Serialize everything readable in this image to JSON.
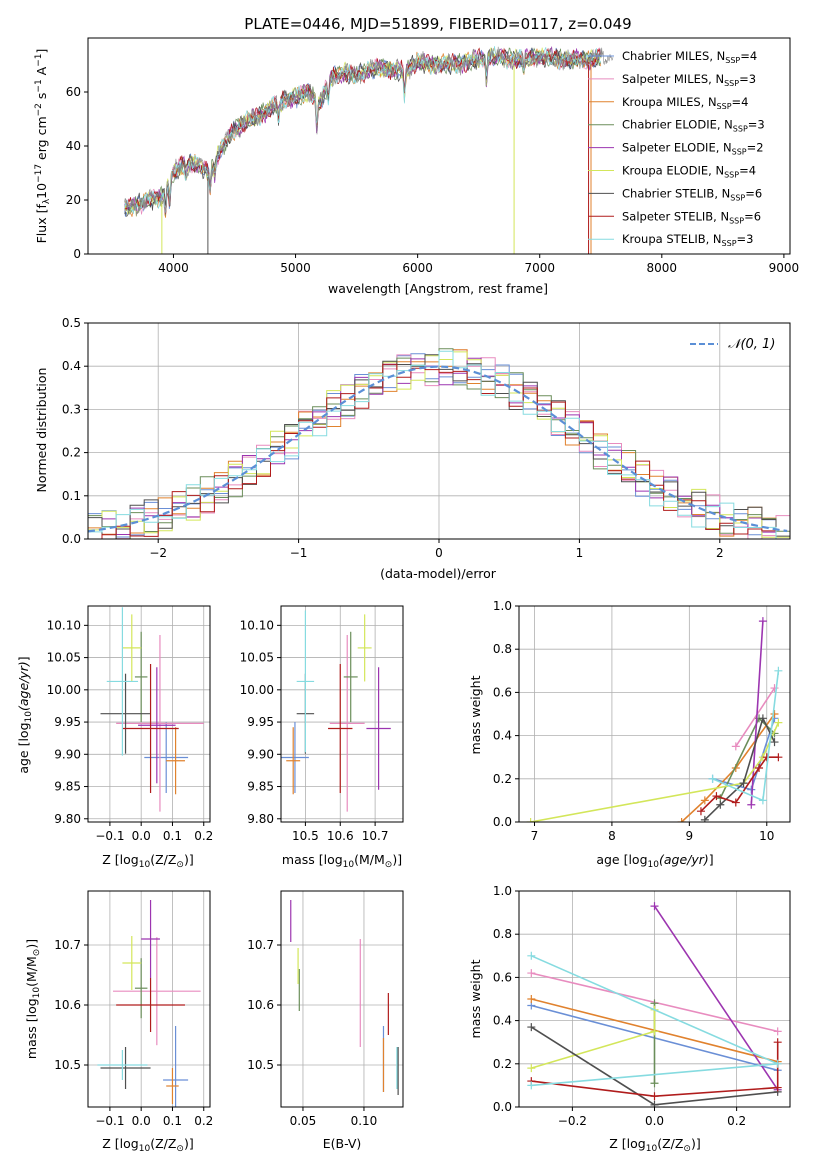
{
  "colors": {
    "chabrier_miles": "#6a8fd6",
    "salpeter_miles": "#e88cbf",
    "kroupa_miles": "#e0822e",
    "chabrier_elodie": "#6b8e5a",
    "salpeter_elodie": "#9c35b0",
    "kroupa_elodie": "#d3e65a",
    "chabrier_stelib": "#4f4f4f",
    "salpeter_stelib": "#b01c1c",
    "kroupa_stelib": "#86dbe0",
    "normal": "#5b8fd6"
  },
  "chart_data": [
    {
      "id": "spectrum",
      "type": "line",
      "title": "PLATE=0446, MJD=51899, FIBERID=0117, z=0.049",
      "xlabel": "wavelength [Angstrom, rest frame]",
      "ylabel": "Flux [f_λ 10^-17 erg cm^-2 s^-1 A^-1]",
      "xlim": [
        3300,
        9050
      ],
      "ylim": [
        0,
        80
      ],
      "xticks": [
        4000,
        5000,
        6000,
        7000,
        8000,
        9000
      ],
      "yticks": [
        0,
        20,
        40,
        60
      ],
      "continuum": {
        "x": [
          3600,
          3700,
          3800,
          3900,
          4000,
          4100,
          4200,
          4300,
          4400,
          4500,
          4600,
          4700,
          4800,
          4900,
          5000,
          5100,
          5200,
          5300,
          5400,
          5500,
          5600,
          5700,
          5800,
          5900,
          6000,
          6200,
          6400,
          6600,
          6800,
          7000,
          7200,
          7400,
          7500
        ],
        "y": [
          17,
          18,
          20,
          21,
          30,
          34,
          33,
          30,
          40,
          46,
          49,
          51,
          54,
          57,
          58,
          60,
          56,
          66,
          67,
          66,
          68,
          69,
          68,
          68,
          71,
          70,
          71,
          73,
          72,
          73,
          72,
          72,
          73
        ]
      },
      "legend": [
        {
          "name": "Chabrier MILES, N",
          "sub": "SSP",
          "n": "=4"
        },
        {
          "name": "Salpeter MILES, N",
          "sub": "SSP",
          "n": "=3"
        },
        {
          "name": "Kroupa MILES, N",
          "sub": "SSP",
          "n": "=4"
        },
        {
          "name": "Chabrier ELODIE, N",
          "sub": "SSP",
          "n": "=3"
        },
        {
          "name": "Salpeter ELODIE, N",
          "sub": "SSP",
          "n": "=2"
        },
        {
          "name": "Kroupa ELODIE, N",
          "sub": "SSP",
          "n": "=4"
        },
        {
          "name": "Chabrier STELIB, N",
          "sub": "SSP",
          "n": "=6"
        },
        {
          "name": "Salpeter STELIB, N",
          "sub": "SSP",
          "n": "=6"
        },
        {
          "name": "Kroupa STELIB, N",
          "sub": "SSP",
          "n": "=3"
        }
      ],
      "legend_position": "right"
    },
    {
      "id": "residuals",
      "type": "line",
      "xlabel": "(data-model)/error",
      "ylabel": "Normed distribution",
      "xlim": [
        -2.5,
        2.5
      ],
      "ylim": [
        0,
        0.5
      ],
      "xticks": [
        -2,
        -1,
        0,
        1,
        2
      ],
      "yticks": [
        0.0,
        0.1,
        0.2,
        0.3,
        0.4,
        0.5
      ],
      "grid": true,
      "legend": [
        "𝒩(0, 1)"
      ],
      "legend_position": "top-right"
    },
    {
      "id": "age_vs_Z",
      "type": "scatter",
      "xlabel": "Z [log10(Z/Z⊙)]",
      "ylabel": "age [log10(age/yr)]",
      "xlim": [
        -0.17,
        0.22
      ],
      "ylim": [
        9.795,
        10.13
      ],
      "xticks": [
        -0.1,
        0.0,
        0.1,
        0.2
      ],
      "yticks": [
        9.8,
        9.85,
        9.9,
        9.95,
        10.0,
        10.05,
        10.1
      ],
      "points": [
        {
          "s": "chabrier_miles",
          "x": 0.08,
          "y": 9.895,
          "xerr": 0.07,
          "yerr": 0.055
        },
        {
          "s": "salpeter_miles",
          "x": 0.06,
          "y": 9.948,
          "xerr": 0.14,
          "yerr": 0.137
        },
        {
          "s": "kroupa_miles",
          "x": 0.11,
          "y": 9.89,
          "xerr": 0.03,
          "yerr": 0.052
        },
        {
          "s": "chabrier_elodie",
          "x": 0.0,
          "y": 10.02,
          "xerr": 0.02,
          "yerr": 0.07
        },
        {
          "s": "salpeter_elodie",
          "x": 0.05,
          "y": 9.945,
          "xerr": 0.06,
          "yerr": 0.09
        },
        {
          "s": "kroupa_elodie",
          "x": -0.03,
          "y": 10.065,
          "xerr": 0.03,
          "yerr": 0.052
        },
        {
          "s": "chabrier_stelib",
          "x": -0.05,
          "y": 9.963,
          "xerr": 0.08,
          "yerr": 0.062
        },
        {
          "s": "salpeter_stelib",
          "x": 0.03,
          "y": 9.94,
          "xerr": 0.09,
          "yerr": 0.1
        },
        {
          "s": "kroupa_stelib",
          "x": -0.06,
          "y": 10.013,
          "xerr": 0.05,
          "yerr": 0.115
        }
      ]
    },
    {
      "id": "age_vs_mass",
      "type": "scatter",
      "xlabel": "mass [log10(M/M⊙)]",
      "xlim": [
        10.43,
        10.78
      ],
      "ylim": [
        9.795,
        10.13
      ],
      "xticks": [
        10.5,
        10.6,
        10.7
      ],
      "yticks": [
        9.8,
        9.85,
        9.9,
        9.95,
        10.0,
        10.05,
        10.1
      ],
      "points": [
        {
          "s": "chabrier_miles",
          "x": 10.47,
          "y": 9.895,
          "xerr": 0.04,
          "yerr": 0.055
        },
        {
          "s": "salpeter_miles",
          "x": 10.62,
          "y": 9.948,
          "xerr": 0.05,
          "yerr": 0.137
        },
        {
          "s": "kroupa_miles",
          "x": 10.465,
          "y": 9.89,
          "xerr": 0.02,
          "yerr": 0.052
        },
        {
          "s": "chabrier_elodie",
          "x": 10.63,
          "y": 10.02,
          "xerr": 0.02,
          "yerr": 0.07
        },
        {
          "s": "salpeter_elodie",
          "x": 10.71,
          "y": 9.94,
          "xerr": 0.035,
          "yerr": 0.095
        },
        {
          "s": "kroupa_elodie",
          "x": 10.67,
          "y": 10.065,
          "xerr": 0.02,
          "yerr": 0.052
        },
        {
          "s": "chabrier_stelib",
          "x": 10.5,
          "y": 9.963,
          "xerr": 0.025,
          "yerr": 0.062
        },
        {
          "s": "salpeter_stelib",
          "x": 10.6,
          "y": 9.94,
          "xerr": 0.035,
          "yerr": 0.1
        },
        {
          "s": "kroupa_stelib",
          "x": 10.5,
          "y": 10.013,
          "xerr": 0.025,
          "yerr": 0.11
        }
      ]
    },
    {
      "id": "weight_vs_age",
      "type": "line",
      "xlabel": "age [log10(age/yr)]",
      "ylabel": "mass weight",
      "xlim": [
        6.8,
        10.3
      ],
      "ylim": [
        0,
        1
      ],
      "xticks": [
        7,
        8,
        9,
        10
      ],
      "yticks": [
        0.0,
        0.2,
        0.4,
        0.6,
        0.8,
        1.0
      ],
      "series": [
        {
          "s": "chabrier_miles",
          "x": [
            9.3,
            9.8,
            10.1
          ],
          "y": [
            0.2,
            0.15,
            0.48
          ]
        },
        {
          "s": "salpeter_miles",
          "x": [
            9.6,
            10.1
          ],
          "y": [
            0.35,
            0.62
          ]
        },
        {
          "s": "kroupa_miles",
          "x": [
            8.9,
            9.2,
            9.6,
            10.1
          ],
          "y": [
            0.0,
            0.1,
            0.25,
            0.5
          ]
        },
        {
          "s": "chabrier_elodie",
          "x": [
            9.4,
            9.9,
            10.1
          ],
          "y": [
            0.11,
            0.48,
            0.41
          ]
        },
        {
          "s": "salpeter_elodie",
          "x": [
            9.8,
            9.95
          ],
          "y": [
            0.08,
            0.93
          ]
        },
        {
          "s": "kroupa_elodie",
          "x": [
            6.95,
            9.7,
            9.95,
            10.15
          ],
          "y": [
            0.0,
            0.18,
            0.3,
            0.46
          ]
        },
        {
          "s": "chabrier_stelib",
          "x": [
            9.2,
            9.4,
            9.7,
            9.95,
            10.1
          ],
          "y": [
            0.01,
            0.08,
            0.18,
            0.48,
            0.37
          ]
        },
        {
          "s": "salpeter_stelib",
          "x": [
            9.15,
            9.35,
            9.6,
            9.9,
            10.0,
            10.15
          ],
          "y": [
            0.05,
            0.12,
            0.09,
            0.25,
            0.3,
            0.3
          ]
        },
        {
          "s": "kroupa_stelib",
          "x": [
            9.3,
            9.95,
            10.15
          ],
          "y": [
            0.2,
            0.1,
            0.7
          ]
        }
      ]
    },
    {
      "id": "mass_vs_Z",
      "type": "scatter",
      "xlabel": "Z [log10(Z/Z⊙)]",
      "ylabel": "mass [log10(M/M⊙)]",
      "xlim": [
        -0.17,
        0.22
      ],
      "ylim": [
        10.43,
        10.79
      ],
      "xticks": [
        -0.1,
        0.0,
        0.1,
        0.2
      ],
      "yticks": [
        10.5,
        10.6,
        10.7
      ],
      "points": [
        {
          "s": "chabrier_miles",
          "x": 0.11,
          "y": 10.475,
          "xerr": 0.04,
          "yerr": 0.09
        },
        {
          "s": "salpeter_miles",
          "x": 0.05,
          "y": 10.623,
          "xerr": 0.14,
          "yerr": 0.09
        },
        {
          "s": "kroupa_miles",
          "x": 0.1,
          "y": 10.465,
          "xerr": 0.02,
          "yerr": 0.03
        },
        {
          "s": "chabrier_elodie",
          "x": 0.0,
          "y": 10.628,
          "xerr": 0.02,
          "yerr": 0.05
        },
        {
          "s": "salpeter_elodie",
          "x": 0.03,
          "y": 10.71,
          "xerr": 0.03,
          "yerr": 0.065
        },
        {
          "s": "kroupa_elodie",
          "x": -0.03,
          "y": 10.67,
          "xerr": 0.03,
          "yerr": 0.045
        },
        {
          "s": "chabrier_stelib",
          "x": -0.05,
          "y": 10.495,
          "xerr": 0.08,
          "yerr": 0.035
        },
        {
          "s": "salpeter_stelib",
          "x": 0.03,
          "y": 10.6,
          "xerr": 0.11,
          "yerr": 0.045
        },
        {
          "s": "kroupa_stelib",
          "x": -0.06,
          "y": 10.5,
          "xerr": 0.08,
          "yerr": 0.025
        }
      ]
    },
    {
      "id": "mass_vs_ebv",
      "type": "scatter",
      "xlabel": "E(B-V)",
      "xlim": [
        0.032,
        0.132
      ],
      "ylim": [
        10.43,
        10.79
      ],
      "xticks": [
        0.05,
        0.1
      ],
      "yticks": [
        10.5,
        10.6,
        10.7
      ],
      "points": [
        {
          "s": "chabrier_miles",
          "x": 0.116,
          "y": 10.51,
          "yerr": 0.055
        },
        {
          "s": "salpeter_miles",
          "x": 0.097,
          "y": 10.62,
          "yerr": 0.09
        },
        {
          "s": "kroupa_miles",
          "x": 0.116,
          "y": 10.5,
          "yerr": 0.045
        },
        {
          "s": "chabrier_elodie",
          "x": 0.047,
          "y": 10.625,
          "yerr": 0.035
        },
        {
          "s": "salpeter_elodie",
          "x": 0.04,
          "y": 10.74,
          "yerr": 0.035
        },
        {
          "s": "kroupa_elodie",
          "x": 0.046,
          "y": 10.665,
          "yerr": 0.03
        },
        {
          "s": "chabrier_stelib",
          "x": 0.128,
          "y": 10.49,
          "yerr": 0.04
        },
        {
          "s": "salpeter_stelib",
          "x": 0.12,
          "y": 10.585,
          "yerr": 0.035
        },
        {
          "s": "kroupa_stelib",
          "x": 0.127,
          "y": 10.495,
          "yerr": 0.035
        }
      ]
    },
    {
      "id": "weight_vs_Z",
      "type": "line",
      "xlabel": "Z [log10(Z/Z⊙)]",
      "ylabel": "mass weight",
      "xlim": [
        -0.33,
        0.33
      ],
      "ylim": [
        0,
        1
      ],
      "xticks": [
        -0.2,
        0.0,
        0.2
      ],
      "yticks": [
        0.0,
        0.2,
        0.4,
        0.6,
        0.8,
        1.0
      ],
      "series": [
        {
          "s": "chabrier_miles",
          "x": [
            -0.3,
            0.3
          ],
          "y": [
            0.47,
            0.17
          ]
        },
        {
          "s": "salpeter_miles",
          "x": [
            -0.3,
            0.3
          ],
          "y": [
            0.62,
            0.35
          ]
        },
        {
          "s": "kroupa_miles",
          "x": [
            -0.3,
            0.3
          ],
          "y": [
            0.5,
            0.21
          ]
        },
        {
          "s": "chabrier_elodie",
          "x": [
            0.0,
            0.0
          ],
          "y": [
            0.11,
            0.48
          ]
        },
        {
          "s": "salpeter_elodie",
          "x": [
            0.0,
            0.3
          ],
          "y": [
            0.93,
            0.08
          ]
        },
        {
          "s": "kroupa_elodie",
          "x": [
            -0.3,
            0.0,
            0.0
          ],
          "y": [
            0.18,
            0.35,
            0.45
          ]
        },
        {
          "s": "chabrier_stelib",
          "x": [
            -0.3,
            0.0,
            0.3
          ],
          "y": [
            0.37,
            0.01,
            0.07
          ]
        },
        {
          "s": "salpeter_stelib",
          "x": [
            -0.3,
            0.0,
            0.3,
            0.3
          ],
          "y": [
            0.12,
            0.05,
            0.09,
            0.3
          ]
        },
        {
          "s": "kroupa_stelib",
          "x": [
            -0.3,
            0.3,
            -0.3
          ],
          "y": [
            0.1,
            0.2,
            0.7
          ]
        }
      ]
    }
  ]
}
